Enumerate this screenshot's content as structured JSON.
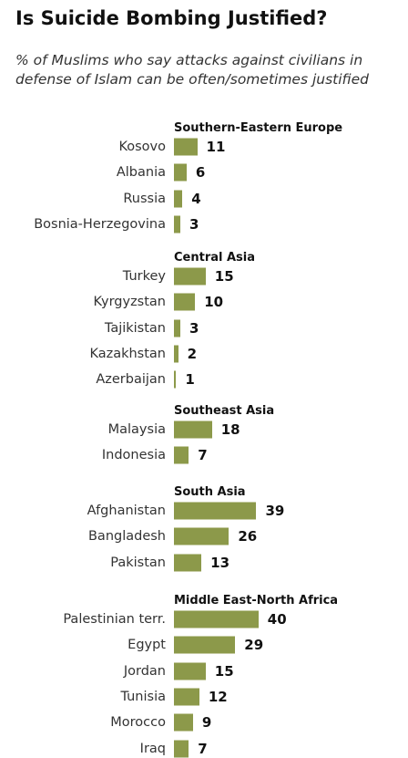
{
  "chart_data": {
    "type": "bar",
    "orientation": "horizontal",
    "title": "Is Suicide Bombing Justified?",
    "subtitle": "% of Muslims who say attacks against civilians in defense of Islam can be often/sometimes justified",
    "bar_color": "#8c994a",
    "xlim": [
      0,
      40
    ],
    "groups": [
      {
        "name": "Southern-Eastern Europe",
        "categories": [
          "Kosovo",
          "Albania",
          "Russia",
          "Bosnia-Herzegovina"
        ],
        "values": [
          11,
          6,
          4,
          3
        ]
      },
      {
        "name": "Central Asia",
        "categories": [
          "Turkey",
          "Kyrgyzstan",
          "Tajikistan",
          "Kazakhstan",
          "Azerbaijan"
        ],
        "values": [
          15,
          10,
          3,
          2,
          1
        ]
      },
      {
        "name": "Southeast Asia",
        "categories": [
          "Malaysia",
          "Indonesia"
        ],
        "values": [
          18,
          7
        ]
      },
      {
        "name": "South Asia",
        "categories": [
          "Afghanistan",
          "Bangladesh",
          "Pakistan"
        ],
        "values": [
          39,
          26,
          13
        ]
      },
      {
        "name": "Middle East-North Africa",
        "categories": [
          "Palestinian terr.",
          "Egypt",
          "Jordan",
          "Tunisia",
          "Morocco",
          "Iraq"
        ],
        "values": [
          40,
          29,
          15,
          12,
          9,
          7
        ]
      }
    ]
  }
}
